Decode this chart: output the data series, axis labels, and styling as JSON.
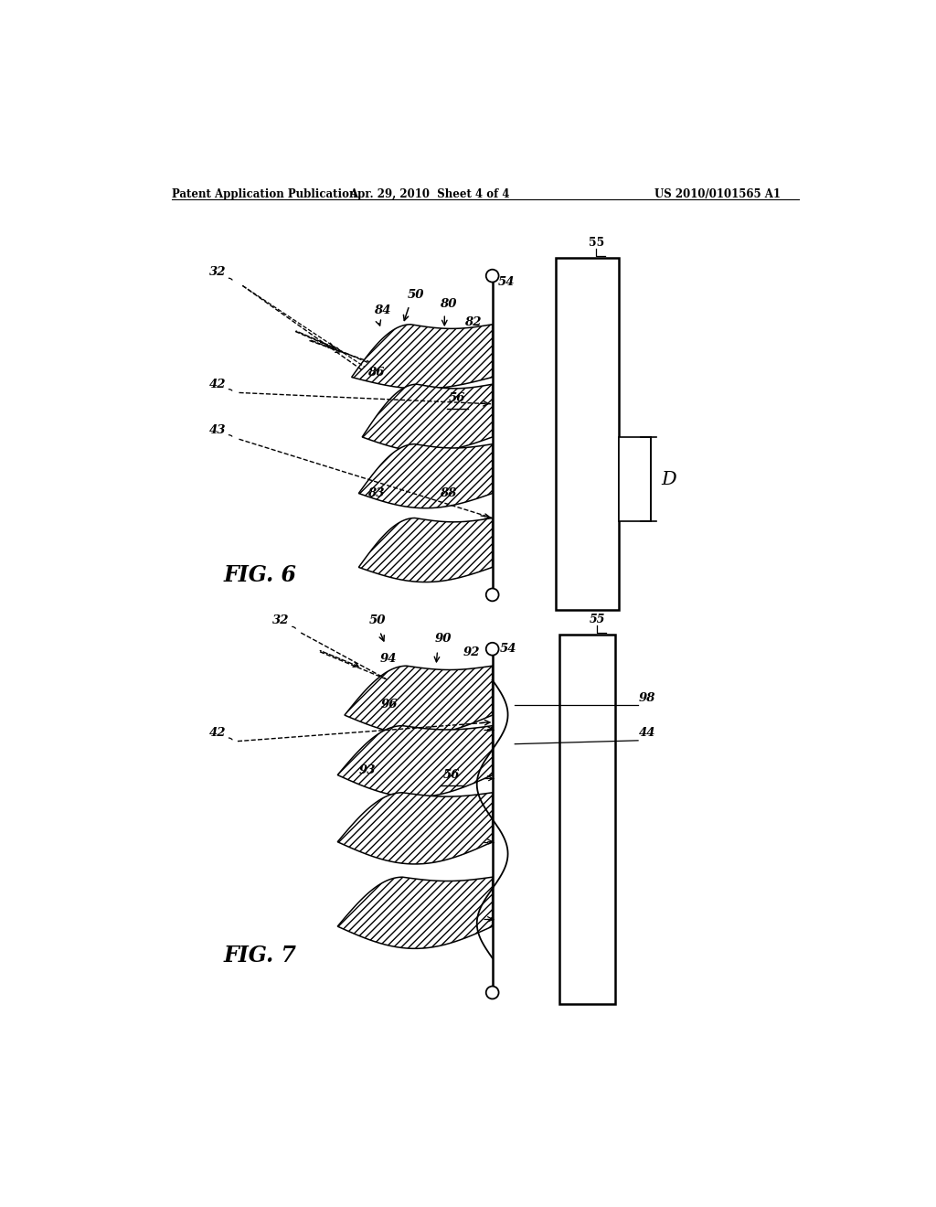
{
  "bg_color": "#ffffff",
  "header_left": "Patent Application Publication",
  "header_center": "Apr. 29, 2010  Sheet 4 of 4",
  "header_right": "US 2010/0101565 A1",
  "fig6_label": "FIG. 6",
  "fig7_label": "FIG. 7"
}
